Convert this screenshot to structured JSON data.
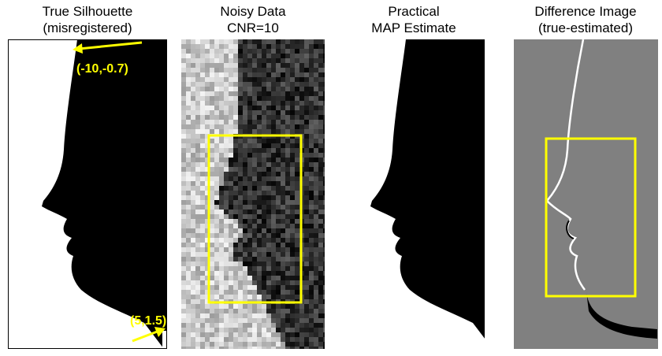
{
  "panels": [
    {
      "title": [
        "True Silhouette",
        "(misregistered)"
      ],
      "annotations": [
        "(-10,-0.7)",
        "(5,1.5)"
      ]
    },
    {
      "title": [
        "Noisy Data",
        "CNR=10"
      ]
    },
    {
      "title": [
        "Practical",
        "MAP Estimate"
      ]
    },
    {
      "title": [
        "Difference Image",
        "(true-estimated)"
      ]
    }
  ]
}
